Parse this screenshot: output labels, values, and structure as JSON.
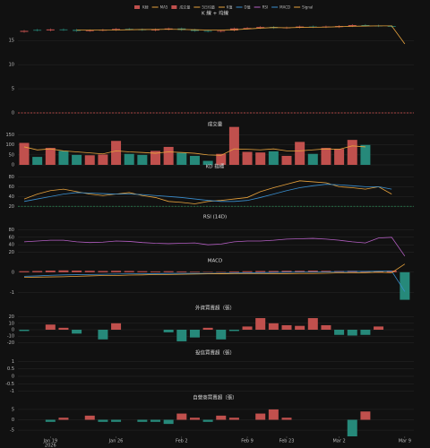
{
  "chart_data": {
    "type": "multi-panel",
    "x": [
      "2026-01-15",
      "2026-01-16",
      "2026-01-19",
      "2026-01-20",
      "2026-01-21",
      "2026-01-22",
      "2026-01-23",
      "2026-01-26",
      "2026-01-27",
      "2026-01-28",
      "2026-01-29",
      "2026-01-30",
      "2026-02-02",
      "2026-02-03",
      "2026-02-04",
      "2026-02-05",
      "2026-02-06",
      "2026-02-09",
      "2026-02-10",
      "2026-02-11",
      "2026-02-23",
      "2026-02-24",
      "2026-02-25",
      "2026-02-26",
      "2026-03-02",
      "2026-03-03",
      "2026-03-04",
      "2026-03-05",
      "2026-03-06",
      "2026-03-09"
    ],
    "xticks": [
      {
        "value": "2026-01-19",
        "label": "Jan 19"
      },
      {
        "value": "2026-01-26",
        "label": "Jan 26"
      },
      {
        "value": "2026-02-02",
        "label": "Feb 2"
      },
      {
        "value": "2026-02-09",
        "label": "Feb 9"
      },
      {
        "value": "2026-02-23",
        "label": "Feb 23"
      },
      {
        "value": "2026-03-02",
        "label": "Mar 2"
      },
      {
        "value": "2026-03-09",
        "label": "Mar 9"
      }
    ],
    "x_year_label": "2026",
    "up_color": "#c0504d",
    "down_color": "#26897a",
    "panels": [
      {
        "type": "candlestick",
        "title": "K 線 + 均線",
        "name": "K線",
        "open": [
          16.8,
          17.2,
          17.1,
          17.3,
          17.2,
          17.0,
          17.1,
          17.2,
          17.4,
          17.3,
          17.1,
          17.3,
          17.5,
          17.2,
          17.0,
          16.9,
          17.1,
          17.5,
          17.6,
          17.8,
          17.6,
          17.7,
          17.9,
          17.8,
          17.8,
          18.0,
          18.2,
          18.1,
          18.0,
          null
        ],
        "high": [
          17.2,
          17.4,
          17.5,
          17.5,
          17.4,
          17.3,
          17.4,
          17.6,
          17.6,
          17.5,
          17.5,
          17.7,
          17.7,
          17.4,
          17.2,
          17.2,
          17.7,
          17.8,
          18.0,
          18.0,
          17.9,
          18.1,
          18.1,
          18.1,
          18.2,
          18.4,
          18.4,
          18.3,
          18.2,
          null
        ],
        "low": [
          16.6,
          16.9,
          16.9,
          17.0,
          16.8,
          16.8,
          16.9,
          17.0,
          17.1,
          17.0,
          16.9,
          17.1,
          17.0,
          16.8,
          16.7,
          16.7,
          16.9,
          17.3,
          17.4,
          17.4,
          17.4,
          17.5,
          17.6,
          17.6,
          17.6,
          17.8,
          17.9,
          17.8,
          17.7,
          null
        ],
        "close": [
          17.0,
          17.1,
          17.3,
          17.2,
          17.0,
          17.1,
          17.2,
          17.4,
          17.3,
          17.2,
          17.3,
          17.5,
          17.2,
          17.0,
          16.9,
          17.0,
          17.5,
          17.6,
          17.8,
          17.6,
          17.7,
          17.9,
          17.8,
          17.9,
          18.0,
          18.2,
          18.1,
          18.0,
          17.9,
          null
        ],
        "series": [
          {
            "name": "MA5",
            "color": "#e8a33d",
            "values": [
              null,
              null,
              null,
              null,
              17.16,
              17.18,
              17.16,
              17.18,
              17.24,
              17.28,
              17.28,
              17.34,
              17.3,
              17.24,
              17.18,
              17.18,
              17.24,
              17.4,
              17.56,
              17.7,
              17.64,
              17.72,
              17.76,
              17.78,
              17.86,
              17.96,
              18.0,
              18.04,
              18.04,
              14.3
            ]
          }
        ],
        "ref_lines": [
          {
            "value": 0,
            "color": "#d9534f"
          }
        ],
        "ylim": [
          -0.5,
          19.5
        ],
        "yticks": [
          0,
          5,
          10,
          15
        ]
      },
      {
        "type": "volume",
        "title": "成交量",
        "name": "成交量",
        "values": [
          110,
          40,
          85,
          70,
          50,
          48,
          52,
          120,
          55,
          50,
          70,
          90,
          60,
          45,
          20,
          55,
          190,
          65,
          62,
          68,
          45,
          115,
          55,
          85,
          80,
          125,
          100,
          null,
          null,
          null
        ],
        "series": [
          {
            "name": "5日均量",
            "color": "#e8a33d",
            "values": [
              90,
              75,
              80,
              70,
              65,
              60,
              55,
              70,
              65,
              62,
              58,
              65,
              62,
              58,
              50,
              48,
              80,
              78,
              75,
              80,
              70,
              70,
              75,
              80,
              78,
              95,
              90,
              null,
              null,
              null
            ]
          }
        ],
        "ylim": [
          0,
          175
        ],
        "yticks": [
          0,
          50,
          100,
          150
        ]
      },
      {
        "type": "line",
        "title": "KD 指標",
        "series": [
          {
            "name": "K值",
            "color": "#e8a33d",
            "values": [
              35,
              45,
              52,
              55,
              50,
              45,
              42,
              45,
              48,
              42,
              38,
              30,
              28,
              25,
              30,
              32,
              35,
              38,
              50,
              58,
              65,
              72,
              70,
              68,
              60,
              58,
              55,
              60,
              45,
              null
            ]
          },
          {
            "name": "D值",
            "color": "#3a8fd0",
            "values": [
              30,
              35,
              40,
              45,
              48,
              47,
              46,
              45,
              45,
              44,
              42,
              40,
              38,
              35,
              32,
              30,
              30,
              32,
              38,
              45,
              52,
              58,
              62,
              65,
              64,
              62,
              60,
              60,
              55,
              null
            ]
          }
        ],
        "ref_lines": [
          {
            "value": 20,
            "color": "#2e8b57"
          }
        ],
        "ylim": [
          15,
          90
        ],
        "yticks": [
          20,
          40,
          60,
          80
        ]
      },
      {
        "type": "line",
        "title": "RSI (14D)",
        "series": [
          {
            "name": "RSI",
            "color": "#b55fc4",
            "values": [
              48,
              50,
              52,
              52,
              48,
              46,
              47,
              50,
              49,
              46,
              44,
              43,
              44,
              45,
              40,
              42,
              48,
              50,
              50,
              52,
              55,
              56,
              57,
              55,
              52,
              48,
              45,
              58,
              60,
              10
            ]
          }
        ],
        "ylim": [
          0,
          100
        ],
        "yticks": [
          20,
          40,
          60,
          80
        ]
      },
      {
        "type": "macd",
        "title": "MACD",
        "values": [
          0.05,
          0.06,
          0.08,
          0.09,
          0.08,
          0.07,
          0.06,
          0.07,
          0.06,
          0.05,
          0.04,
          0.05,
          0.04,
          0.03,
          0.02,
          0.02,
          0.04,
          0.05,
          0.06,
          0.06,
          0.07,
          0.07,
          0.08,
          0.07,
          0.06,
          0.07,
          0.06,
          0.05,
          0.08,
          -1.35
        ],
        "series": [
          {
            "name": "MACD",
            "color": "#3a8fd0",
            "values": [
              -0.2,
              -0.18,
              -0.15,
              -0.13,
              -0.12,
              -0.11,
              -0.1,
              -0.09,
              -0.08,
              -0.08,
              -0.07,
              -0.06,
              -0.06,
              -0.06,
              -0.06,
              -0.05,
              -0.04,
              -0.03,
              -0.02,
              -0.01,
              0.0,
              0.01,
              0.02,
              0.02,
              0.03,
              0.04,
              0.04,
              0.05,
              0.06,
              -0.95
            ]
          },
          {
            "name": "Signal",
            "color": "#e8a33d",
            "values": [
              -0.25,
              -0.24,
              -0.23,
              -0.22,
              -0.2,
              -0.18,
              -0.16,
              -0.16,
              -0.14,
              -0.13,
              -0.11,
              -0.11,
              -0.1,
              -0.09,
              -0.08,
              -0.07,
              -0.08,
              -0.08,
              -0.08,
              -0.07,
              -0.07,
              -0.06,
              -0.06,
              -0.05,
              -0.03,
              -0.03,
              -0.02,
              0.0,
              -0.02,
              0.4
            ]
          }
        ],
        "ylim": [
          -1.5,
          0.3
        ],
        "yticks": [
          -1,
          0
        ]
      },
      {
        "type": "bar",
        "title": "外資買賣超（張）",
        "values": [
          -2,
          0,
          8,
          3,
          -6,
          0,
          -15,
          10,
          0,
          0,
          0,
          -4,
          -18,
          -12,
          3,
          -15,
          -2,
          5,
          18,
          10,
          7,
          6,
          18,
          7,
          -8,
          -9,
          -8,
          5,
          null,
          null
        ],
        "ylim": [
          -25,
          25
        ],
        "yticks": [
          -20,
          -10,
          0,
          10,
          20
        ]
      },
      {
        "type": "bar",
        "title": "投信買賣超（張）",
        "values": [
          0,
          0,
          0,
          0,
          0,
          0,
          0,
          0,
          0,
          0,
          0,
          0,
          0,
          0,
          0,
          0,
          0,
          0,
          0,
          0,
          0,
          0,
          0,
          0,
          0,
          0,
          0,
          0,
          null,
          null
        ],
        "ylim": [
          -1.2,
          1.2
        ],
        "yticks": [
          -1,
          -0.5,
          0,
          0.5,
          1
        ]
      },
      {
        "type": "bar",
        "title": "自營商買賣超（張）",
        "values": [
          0,
          0,
          -1,
          1,
          0,
          2,
          -1,
          -1,
          0,
          -1,
          -1,
          -2,
          3,
          1,
          -1,
          2,
          1,
          0,
          3,
          5,
          1,
          0,
          0,
          0,
          0,
          -8,
          4,
          0,
          null,
          null
        ],
        "ylim": [
          -8,
          8
        ],
        "yticks": [
          -5,
          0,
          5
        ]
      }
    ]
  }
}
